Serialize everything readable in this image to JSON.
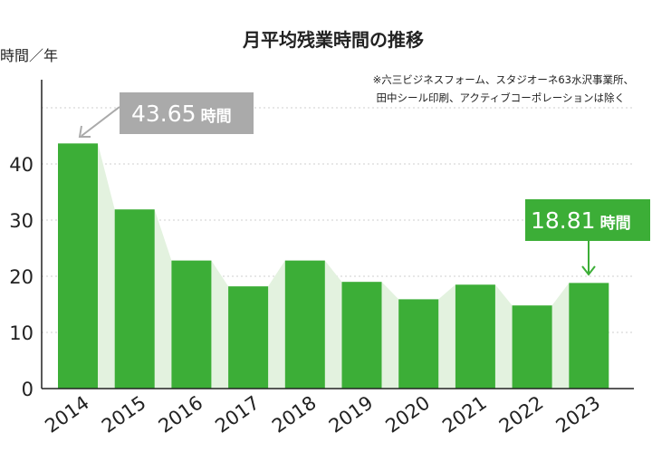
{
  "title": "月平均残業時間の推移",
  "note_lines": [
    "※六三ビジネスフォーム、スタジオーネ63水沢事業所、",
    "田中シール印刷、アクティブコーポレーションは除く"
  ],
  "y_unit_label": "時間／年",
  "callouts": [
    {
      "number": "43.65",
      "unit": "時間",
      "color": "#aaaaaa"
    },
    {
      "number": "18.81",
      "unit": "時間",
      "color": "#3cae37"
    }
  ],
  "colors": {
    "bar": "#3cae37",
    "shade": "#e3f2df",
    "highlight_tick": "#3cae37",
    "grid": "#cfcfcf",
    "axis": "#222222"
  },
  "chart_data": {
    "type": "bar",
    "categories": [
      "2014",
      "2015",
      "2016",
      "2017",
      "2018",
      "2019",
      "2020",
      "2021",
      "2022",
      "2023"
    ],
    "values": [
      43.65,
      31.9,
      22.8,
      18.2,
      22.8,
      19.0,
      15.9,
      18.5,
      14.8,
      18.81
    ],
    "title": "月平均残業時間の推移",
    "ylabel": "時間／年",
    "xlabel": "",
    "ylim": [
      0,
      55
    ],
    "yticks": [
      0,
      10,
      20,
      30,
      40
    ],
    "grid": true,
    "highlight_category": "2023"
  }
}
